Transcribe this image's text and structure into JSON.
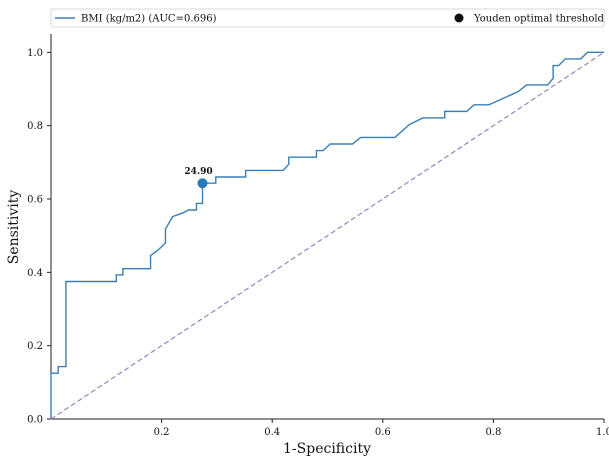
{
  "chart_data": {
    "type": "line",
    "xlabel": "1-Specificity",
    "ylabel": "Sensitivity",
    "xlim": [
      0,
      1.0
    ],
    "ylim": [
      0,
      1.05
    ],
    "xticks": [
      {
        "value": 0.2,
        "label": "0.2"
      },
      {
        "value": 0.4,
        "label": "0.4"
      },
      {
        "value": 0.6,
        "label": "0.6"
      },
      {
        "value": 0.8,
        "label": "0.8"
      },
      {
        "value": 1.0,
        "label": "1.0"
      }
    ],
    "yticks": [
      {
        "value": 0.0,
        "label": "0.0"
      },
      {
        "value": 0.2,
        "label": "0.2"
      },
      {
        "value": 0.4,
        "label": "0.4"
      },
      {
        "value": 0.6,
        "label": "0.6"
      },
      {
        "value": 0.8,
        "label": "0.8"
      },
      {
        "value": 1.0,
        "label": "1.0"
      }
    ],
    "grid": false,
    "legend_position": "top",
    "legend": [
      {
        "label": "BMI (kg/m2) (AUC=0.696)",
        "marker": "line"
      },
      {
        "label": "Youden optimal threshold",
        "marker": "dot"
      }
    ],
    "series": [
      {
        "name": "BMI (kg/m2) (AUC=0.696)",
        "color": "#3a7fb5",
        "points": [
          [
            0.0,
            0.0
          ],
          [
            0.0,
            0.125
          ],
          [
            0.013,
            0.125
          ],
          [
            0.013,
            0.143
          ],
          [
            0.027,
            0.143
          ],
          [
            0.027,
            0.375
          ],
          [
            0.118,
            0.375
          ],
          [
            0.118,
            0.393
          ],
          [
            0.13,
            0.393
          ],
          [
            0.13,
            0.41
          ],
          [
            0.18,
            0.41
          ],
          [
            0.18,
            0.446
          ],
          [
            0.193,
            0.46
          ],
          [
            0.207,
            0.48
          ],
          [
            0.207,
            0.518
          ],
          [
            0.22,
            0.552
          ],
          [
            0.24,
            0.563
          ],
          [
            0.248,
            0.57
          ],
          [
            0.263,
            0.57
          ],
          [
            0.263,
            0.588
          ],
          [
            0.274,
            0.588
          ],
          [
            0.274,
            0.643
          ],
          [
            0.298,
            0.643
          ],
          [
            0.298,
            0.66
          ],
          [
            0.352,
            0.66
          ],
          [
            0.352,
            0.678
          ],
          [
            0.42,
            0.678
          ],
          [
            0.43,
            0.695
          ],
          [
            0.43,
            0.714
          ],
          [
            0.48,
            0.714
          ],
          [
            0.48,
            0.732
          ],
          [
            0.492,
            0.732
          ],
          [
            0.505,
            0.75
          ],
          [
            0.545,
            0.75
          ],
          [
            0.56,
            0.768
          ],
          [
            0.622,
            0.768
          ],
          [
            0.648,
            0.803
          ],
          [
            0.672,
            0.821
          ],
          [
            0.712,
            0.821
          ],
          [
            0.712,
            0.839
          ],
          [
            0.752,
            0.839
          ],
          [
            0.765,
            0.857
          ],
          [
            0.792,
            0.857
          ],
          [
            0.845,
            0.893
          ],
          [
            0.86,
            0.911
          ],
          [
            0.898,
            0.911
          ],
          [
            0.908,
            0.929
          ],
          [
            0.908,
            0.964
          ],
          [
            0.918,
            0.964
          ],
          [
            0.93,
            0.982
          ],
          [
            0.958,
            0.982
          ],
          [
            0.97,
            1.0
          ],
          [
            1.0,
            1.0
          ]
        ]
      },
      {
        "name": "",
        "color": "#8c87c4",
        "style": "dashed",
        "points": [
          [
            0,
            0
          ],
          [
            1,
            1
          ]
        ]
      }
    ],
    "youden_point": {
      "x": 0.274,
      "y": 0.643,
      "label": "24.90",
      "color": "#2a78b8"
    }
  }
}
